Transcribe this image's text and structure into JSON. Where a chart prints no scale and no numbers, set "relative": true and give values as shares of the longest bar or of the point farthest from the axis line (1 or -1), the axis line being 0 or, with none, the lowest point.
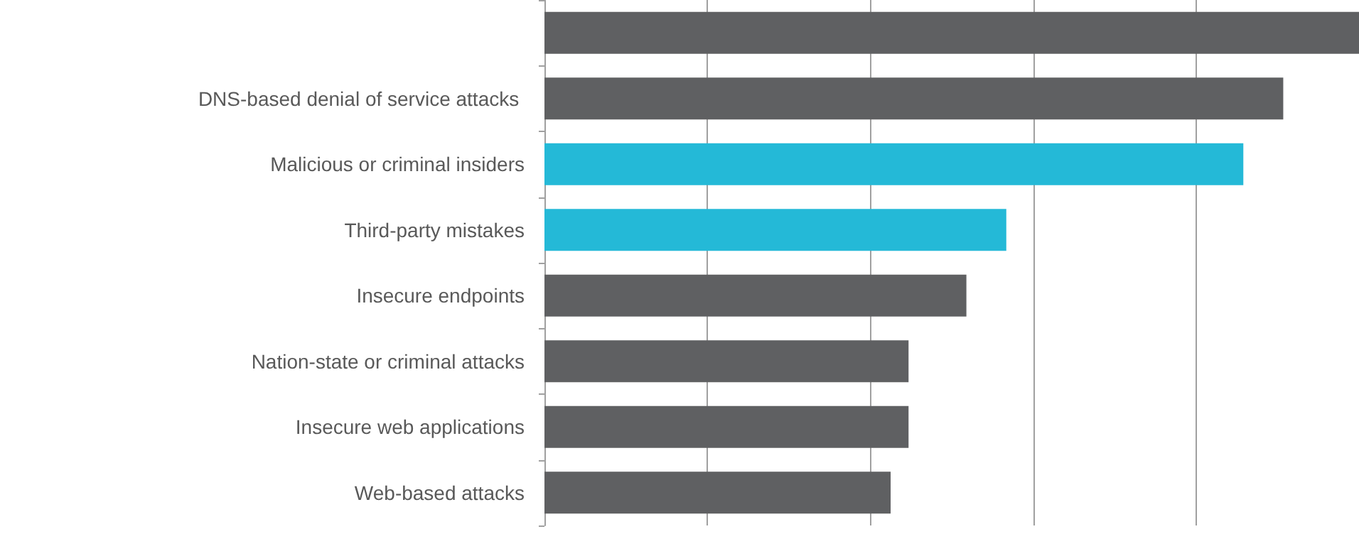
{
  "chart_data": {
    "type": "bar",
    "orientation": "horizontal",
    "relative": true,
    "grid": "x",
    "categories": [
      null,
      "DNS-based denial of service attacks ",
      "Malicious or criminal insiders",
      "Third-party mistakes",
      "Insecure endpoints",
      "Nation-state or criminal attacks",
      "Insecure web applications",
      "Web-based attacks"
    ],
    "values": [
      1,
      0.907,
      0.858,
      0.567,
      0.518,
      0.447,
      0.447,
      0.425
    ],
    "colors": [
      "#5f6062",
      "#5f6062",
      "#24b9d7",
      "#24b9d7",
      "#5f6062",
      "#5f6062",
      "#5f6062",
      "#5f6062"
    ]
  }
}
